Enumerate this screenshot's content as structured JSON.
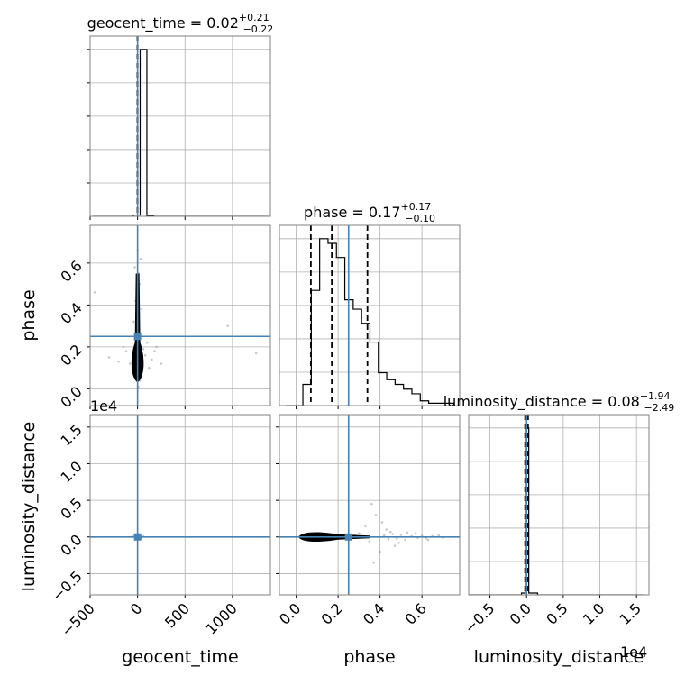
{
  "chart_data": {
    "type": "corner",
    "parameters": [
      "geocent_time",
      "phase",
      "luminosity_distance"
    ],
    "truths": {
      "geocent_time": 0.0,
      "phase": 0.25,
      "luminosity_distance": 0.0
    },
    "titles": {
      "geocent_time": {
        "name": "geocent_time",
        "median": "0.02",
        "plus": "+0.21",
        "minus": "−0.22"
      },
      "phase": {
        "name": "phase",
        "median": "0.17",
        "plus": "+0.17",
        "minus": "−0.10"
      },
      "luminosity_distance": {
        "name": "luminosity_distance",
        "median": "0.08",
        "plus": "+1.94",
        "minus": "−2.49"
      }
    },
    "xlabels": {
      "geocent_time": "geocent_time",
      "phase": "phase",
      "luminosity_distance": "luminosity_distance"
    },
    "ylabels": {
      "phase": "phase",
      "luminosity_distance": "luminosity_distance"
    },
    "offset_texts": {
      "ld_y": "1e4",
      "ld_x": "1e4"
    },
    "ranges": {
      "geocent_time": [
        -500,
        1400
      ],
      "phase": [
        -0.08,
        0.78
      ],
      "luminosity_distance": [
        -0.79,
        1.67
      ]
    },
    "ticks": {
      "geocent_time": {
        "values": [
          -500,
          0,
          500,
          1000
        ],
        "labels": [
          "−500",
          "0",
          "500",
          "1000"
        ]
      },
      "phase": {
        "values": [
          0.0,
          0.2,
          0.4,
          0.6
        ],
        "labels": [
          "0.0",
          "0.2",
          "0.4",
          "0.6"
        ]
      },
      "luminosity_distance": {
        "values": [
          -0.5,
          0.0,
          0.5,
          1.0,
          1.5
        ],
        "labels": [
          "−0.5",
          "0.0",
          "0.5",
          "1.0",
          "1.5"
        ]
      }
    },
    "quantiles": {
      "geocent_time": [
        -0.2,
        0.02,
        0.23
      ],
      "phase": [
        0.07,
        0.17,
        0.34
      ],
      "luminosity_distance": [
        -0.02,
        0.0,
        0.02
      ]
    },
    "histograms": {
      "geocent_time": {
        "edges": [
          -470,
          -399,
          -328,
          -257,
          -186,
          -115,
          -44,
          27,
          98,
          169,
          240,
          311,
          382,
          453,
          524,
          595,
          666,
          737,
          808,
          879,
          950,
          1021,
          1092,
          1163,
          1234,
          1305,
          1376
        ],
        "counts": [
          0,
          0,
          0,
          0,
          0,
          0,
          4,
          520,
          3,
          0,
          0,
          0,
          0,
          0,
          0,
          0,
          0,
          0,
          0,
          0,
          0,
          0,
          0,
          0,
          0,
          0
        ]
      },
      "phase": {
        "edges": [
          -0.048,
          -0.008,
          0.032,
          0.072,
          0.112,
          0.152,
          0.192,
          0.232,
          0.272,
          0.312,
          0.352,
          0.392,
          0.432,
          0.472,
          0.512,
          0.552,
          0.592,
          0.632,
          0.672,
          0.712,
          0.752
        ],
        "counts": [
          0,
          0,
          9,
          49,
          71,
          69,
          63,
          45,
          41,
          35,
          27,
          14,
          11,
          9,
          7,
          5,
          2,
          1,
          1,
          1
        ]
      },
      "luminosity_distance": {
        "edges": [
          -0.79,
          -0.67,
          -0.55,
          -0.43,
          -0.31,
          -0.19,
          -0.07,
          -0.02,
          0.03,
          0.15,
          0.27,
          0.39,
          0.51,
          0.63,
          0.75,
          0.87,
          0.99,
          1.11,
          1.23,
          1.35,
          1.47,
          1.59
        ],
        "counts": [
          0,
          0,
          0,
          0,
          0,
          0,
          2,
          183,
          2,
          0,
          0,
          0,
          0,
          0,
          0,
          0,
          0,
          0,
          0,
          0,
          0
        ]
      }
    },
    "scatter": {
      "phase_vs_geocent_time": {
        "x": [
          -450,
          -300,
          -200,
          -150,
          -120,
          -80,
          60,
          80,
          100,
          120,
          150,
          180,
          200,
          250,
          950,
          1250,
          30,
          -30,
          20,
          -20,
          40,
          -40,
          10,
          -10,
          0,
          5,
          -5,
          15,
          -15,
          25,
          -25,
          8
        ],
        "y": [
          0.46,
          0.15,
          0.13,
          0.2,
          0.18,
          0.12,
          0.19,
          0.16,
          0.22,
          0.1,
          0.14,
          0.18,
          0.2,
          0.12,
          0.3,
          0.17,
          0.62,
          0.58,
          0.5,
          0.42,
          0.38,
          0.32,
          0.55,
          0.48,
          0.66,
          0.44,
          0.36,
          0.28,
          0.06,
          0.04,
          0.08,
          0.01
        ]
      },
      "luminosity_distance_vs_phase": {
        "x": [
          0.42,
          0.44,
          0.46,
          0.48,
          0.5,
          0.52,
          0.55,
          0.58,
          0.6,
          0.62,
          0.65,
          0.38,
          0.36,
          0.4,
          0.43,
          0.47,
          0.33,
          0.3,
          0.35,
          0.45,
          0.37,
          0.41,
          0.49,
          0.53,
          0.28,
          0.26,
          0.57,
          0.63,
          0.68,
          0.7
        ],
        "y": [
          0.02,
          -0.03,
          0.04,
          -0.02,
          0.03,
          -0.04,
          0.01,
          -0.01,
          0.02,
          -0.02,
          0.01,
          0.3,
          0.45,
          -0.2,
          0.1,
          -0.12,
          0.15,
          0.05,
          -0.06,
          0.07,
          -0.35,
          0.2,
          -0.08,
          0.06,
          0.03,
          -0.03,
          0.05,
          -0.04,
          0.02,
          -0.01
        ]
      },
      "luminosity_distance_vs_geocent_time": {
        "x": [
          -40,
          -20,
          0,
          20,
          40,
          60,
          -60,
          10,
          -10,
          30
        ],
        "y": [
          0.01,
          -0.01,
          0.02,
          0.0,
          -0.02,
          0.01,
          0.0,
          0.03,
          -0.03,
          0.01
        ]
      }
    }
  }
}
